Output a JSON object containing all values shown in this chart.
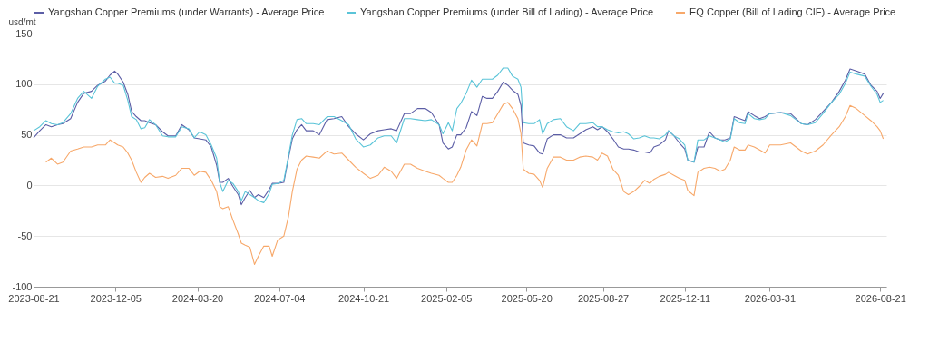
{
  "chart_data": {
    "type": "line",
    "ylabel": "usd/mt",
    "legend": "top",
    "grid": "y",
    "xlim": [
      "2023-08-21",
      "2026-08-29"
    ],
    "xticks": [
      "2023-08-21",
      "2023-12-05",
      "2024-03-20",
      "2024-07-04",
      "2024-10-21",
      "2025-02-05",
      "2025-05-20",
      "2025-08-27",
      "2025-12-11",
      "2026-03-31",
      "2026-08-21"
    ],
    "ylim": [
      -100,
      150
    ],
    "yticks": [
      -100,
      -50,
      0,
      50,
      100,
      150
    ],
    "x": [
      "2023-08-21",
      "2023-08-29",
      "2023-09-06",
      "2023-09-13",
      "2023-09-21",
      "2023-09-28",
      "2023-10-08",
      "2023-10-17",
      "2023-10-25",
      "2023-11-04",
      "2023-11-12",
      "2023-11-22",
      "2023-11-28",
      "2023-12-04",
      "2023-12-08",
      "2023-12-15",
      "2023-12-21",
      "2023-12-26",
      "2024-01-01",
      "2024-01-07",
      "2024-01-12",
      "2024-01-18",
      "2024-01-26",
      "2024-02-04",
      "2024-02-11",
      "2024-02-21",
      "2024-02-29",
      "2024-03-09",
      "2024-03-16",
      "2024-03-23",
      "2024-03-31",
      "2024-04-07",
      "2024-04-14",
      "2024-04-18",
      "2024-04-22",
      "2024-04-29",
      "2024-05-05",
      "2024-05-12",
      "2024-05-16",
      "2024-05-21",
      "2024-05-27",
      "2024-06-02",
      "2024-06-07",
      "2024-06-14",
      "2024-06-21",
      "2024-06-25",
      "2024-07-02",
      "2024-07-10",
      "2024-07-16",
      "2024-07-21",
      "2024-07-27",
      "2024-08-02",
      "2024-08-08",
      "2024-08-17",
      "2024-08-25",
      "2024-09-04",
      "2024-09-13",
      "2024-09-23",
      "2024-10-02",
      "2024-10-11",
      "2024-10-21",
      "2024-10-30",
      "2024-11-09",
      "2024-11-17",
      "2024-11-26",
      "2024-12-03",
      "2024-12-13",
      "2024-12-21",
      "2024-12-30",
      "2025-01-09",
      "2025-01-17",
      "2025-01-27",
      "2025-02-01",
      "2025-02-08",
      "2025-02-13",
      "2025-02-19",
      "2025-02-24",
      "2025-03-03",
      "2025-03-10",
      "2025-03-17",
      "2025-03-24",
      "2025-03-30",
      "2025-04-06",
      "2025-04-13",
      "2025-04-20",
      "2025-04-26",
      "2025-05-02",
      "2025-05-09",
      "2025-05-13",
      "2025-05-16",
      "2025-05-23",
      "2025-05-30",
      "2025-06-06",
      "2025-06-10",
      "2025-06-16",
      "2025-06-24",
      "2025-07-03",
      "2025-07-11",
      "2025-07-20",
      "2025-07-28",
      "2025-08-05",
      "2025-08-14",
      "2025-08-20",
      "2025-08-26",
      "2025-09-02",
      "2025-09-09",
      "2025-09-16",
      "2025-09-23",
      "2025-09-29",
      "2025-10-06",
      "2025-10-13",
      "2025-10-20",
      "2025-10-27",
      "2025-11-01",
      "2025-11-08",
      "2025-11-16",
      "2025-11-20",
      "2025-11-27",
      "2025-12-04",
      "2025-12-11",
      "2025-12-15",
      "2025-12-23",
      "2025-12-28",
      "2026-01-05",
      "2026-01-12",
      "2026-01-19",
      "2026-01-26",
      "2026-02-01",
      "2026-02-08",
      "2026-02-13",
      "2026-02-20",
      "2026-02-27",
      "2026-03-03",
      "2026-03-11",
      "2026-03-18",
      "2026-03-25",
      "2026-03-31",
      "2026-04-14",
      "2026-04-27",
      "2026-05-11",
      "2026-05-19",
      "2026-05-29",
      "2026-06-08",
      "2026-06-19",
      "2026-06-29",
      "2026-07-07",
      "2026-07-13",
      "2026-07-21",
      "2026-08-01",
      "2026-08-09",
      "2026-08-17",
      "2026-08-21",
      "2026-08-25"
    ],
    "series": [
      {
        "name": "Yangshan Copper Premiums (under Warrants) - Average Price",
        "color": "#5c5ea6",
        "values": [
          47,
          54,
          60,
          58,
          60,
          61,
          66,
          82,
          91,
          93,
          99,
          103,
          109,
          113,
          110,
          102,
          90,
          73,
          68,
          64,
          64,
          62,
          60,
          53,
          49,
          49,
          60,
          55,
          47,
          46,
          45,
          38,
          20,
          3,
          3,
          7,
          -1,
          -9,
          -19,
          -12,
          -5,
          -12,
          -9,
          -12,
          -4,
          2,
          2,
          3,
          27,
          46,
          55,
          60,
          54,
          54,
          50,
          65,
          66,
          68,
          58,
          51,
          45,
          51,
          54,
          55,
          56,
          54,
          71,
          71,
          76,
          76,
          72,
          60,
          42,
          36,
          38,
          50,
          50,
          57,
          73,
          69,
          88,
          86,
          86,
          93,
          102,
          99,
          94,
          90,
          79,
          42,
          40,
          39,
          32,
          31,
          46,
          50,
          50,
          47,
          47,
          51,
          55,
          58,
          55,
          58,
          53,
          46,
          38,
          36,
          36,
          35,
          33,
          33,
          32,
          38,
          40,
          45,
          54,
          49,
          42,
          36,
          25,
          23,
          38,
          38,
          53,
          47,
          45,
          45,
          47,
          68,
          66,
          64,
          73,
          69,
          66,
          68,
          71,
          72,
          71,
          61,
          60,
          65,
          73,
          82,
          93,
          104,
          115,
          113,
          110,
          99,
          93,
          86,
          91
        ]
      },
      {
        "name": "Yangshan Copper Premiums (under Bill of Lading) - Average Price",
        "color": "#5ac4d8",
        "values": [
          54,
          58,
          64,
          61,
          60,
          62,
          71,
          86,
          93,
          86,
          98,
          105,
          107,
          101,
          101,
          99,
          84,
          68,
          65,
          56,
          57,
          65,
          60,
          49,
          48,
          48,
          58,
          56,
          47,
          53,
          50,
          40,
          27,
          3,
          -6,
          5,
          2,
          -6,
          -15,
          -6,
          -9,
          -12,
          -15,
          -17,
          -8,
          1,
          2,
          5,
          29,
          50,
          65,
          66,
          61,
          61,
          60,
          68,
          68,
          64,
          60,
          46,
          38,
          40,
          47,
          49,
          49,
          42,
          66,
          66,
          65,
          64,
          65,
          60,
          51,
          62,
          54,
          76,
          81,
          91,
          104,
          97,
          105,
          105,
          105,
          109,
          116,
          116,
          108,
          105,
          97,
          62,
          61,
          61,
          65,
          51,
          61,
          65,
          66,
          58,
          54,
          61,
          61,
          62,
          58,
          58,
          55,
          53,
          52,
          53,
          51,
          46,
          47,
          49,
          47,
          47,
          46,
          50,
          54,
          49,
          46,
          40,
          25,
          23,
          45,
          45,
          49,
          47,
          45,
          43,
          46,
          66,
          62,
          61,
          71,
          66,
          65,
          66,
          71,
          72,
          69,
          61,
          60,
          62,
          71,
          82,
          90,
          101,
          112,
          110,
          108,
          98,
          90,
          82,
          84
        ]
      },
      {
        "name": "EQ Copper (Bill of Lading CIF) - Average Price",
        "color": "#f7a86a",
        "values": [
          null,
          null,
          23,
          27,
          21,
          23,
          34,
          36,
          38,
          38,
          40,
          40,
          45,
          42,
          40,
          38,
          32,
          25,
          13,
          3,
          8,
          12,
          8,
          9,
          7,
          10,
          17,
          17,
          10,
          14,
          13,
          5,
          -6,
          -21,
          -23,
          -21,
          -34,
          -48,
          -57,
          -59,
          -61,
          -78,
          -70,
          -60,
          -60,
          -70,
          -54,
          -50,
          -31,
          -6,
          16,
          25,
          29,
          28,
          27,
          34,
          31,
          32,
          25,
          18,
          12,
          7,
          10,
          18,
          14,
          7,
          21,
          21,
          17,
          14,
          12,
          10,
          7,
          3,
          3,
          10,
          18,
          35,
          45,
          39,
          61,
          61,
          62,
          71,
          80,
          82,
          76,
          66,
          51,
          16,
          12,
          11,
          5,
          -2,
          17,
          28,
          28,
          25,
          25,
          28,
          29,
          28,
          25,
          32,
          29,
          16,
          10,
          -6,
          -9,
          -6,
          -1,
          5,
          2,
          6,
          9,
          11,
          13,
          10,
          7,
          5,
          -5,
          -10,
          13,
          17,
          18,
          17,
          14,
          16,
          25,
          38,
          35,
          35,
          40,
          38,
          35,
          32,
          40,
          40,
          42,
          34,
          31,
          34,
          40,
          50,
          58,
          68,
          79,
          76,
          69,
          64,
          58,
          54,
          46
        ]
      }
    ]
  }
}
